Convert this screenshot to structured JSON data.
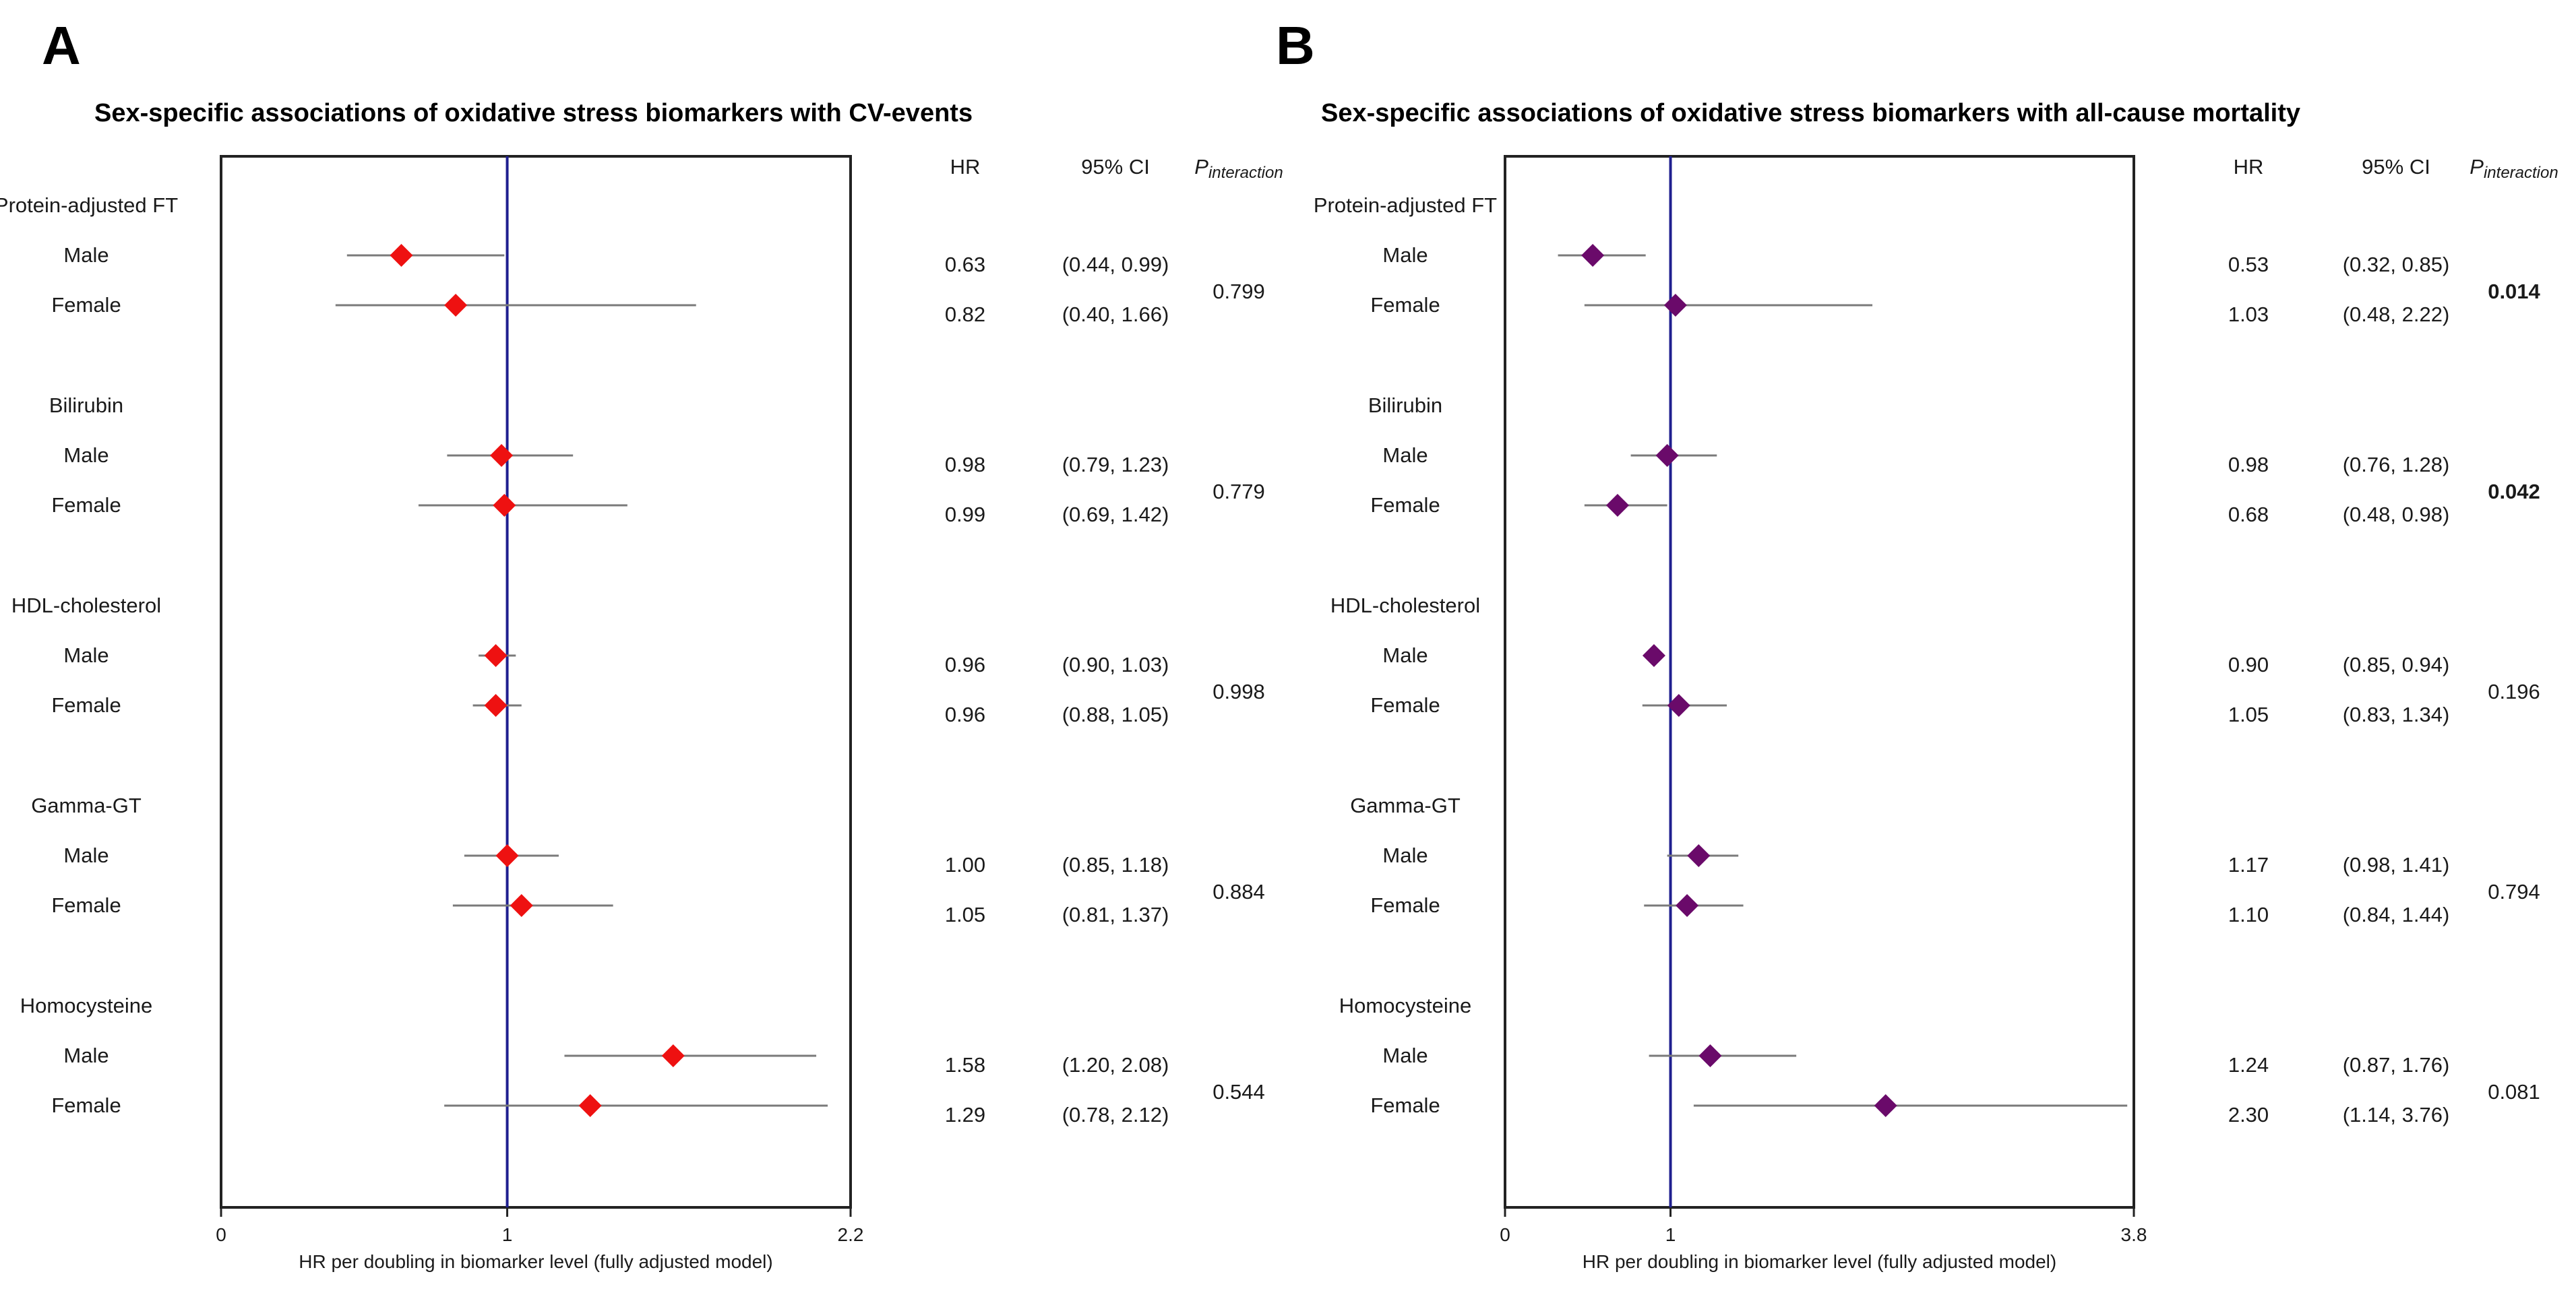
{
  "colors": {
    "ref_line": "#1f1f8f",
    "ci_line": "#7a7a7a",
    "frame": "#222222",
    "panel_a_marker": "#ee1111",
    "panel_b_marker": "#6a0a6a"
  },
  "table_headers": {
    "hr": "HR",
    "ci": "95% CI",
    "p_main": "P",
    "p_sub": "interaction"
  },
  "chart_data": [
    {
      "type": "forest",
      "panel": "A",
      "title": "Sex-specific associations of oxidative stress biomarkers with CV-events",
      "xlabel": "HR per doubling in biomarker level (fully adjusted model)",
      "xlim": [
        0,
        2.2
      ],
      "ticks": [
        "0",
        "1",
        "2.2"
      ],
      "tick_values": [
        0,
        1,
        2.2
      ],
      "reference": 1,
      "groups": [
        {
          "name": "Protein-adjusted FT",
          "p_interaction": "0.799",
          "p_bold": false,
          "rows": [
            {
              "label": "Male",
              "hr": 0.63,
              "lo": 0.44,
              "hi": 0.99,
              "hr_text": "0.63",
              "ci_text": "(0.44, 0.99)"
            },
            {
              "label": "Female",
              "hr": 0.82,
              "lo": 0.4,
              "hi": 1.66,
              "hr_text": "0.82",
              "ci_text": "(0.40, 1.66)"
            }
          ]
        },
        {
          "name": "Bilirubin",
          "p_interaction": "0.779",
          "p_bold": false,
          "rows": [
            {
              "label": "Male",
              "hr": 0.98,
              "lo": 0.79,
              "hi": 1.23,
              "hr_text": "0.98",
              "ci_text": "(0.79, 1.23)"
            },
            {
              "label": "Female",
              "hr": 0.99,
              "lo": 0.69,
              "hi": 1.42,
              "hr_text": "0.99",
              "ci_text": "(0.69, 1.42)"
            }
          ]
        },
        {
          "name": "HDL-cholesterol",
          "p_interaction": "0.998",
          "p_bold": false,
          "rows": [
            {
              "label": "Male",
              "hr": 0.96,
              "lo": 0.9,
              "hi": 1.03,
              "hr_text": "0.96",
              "ci_text": "(0.90, 1.03)"
            },
            {
              "label": "Female",
              "hr": 0.96,
              "lo": 0.88,
              "hi": 1.05,
              "hr_text": "0.96",
              "ci_text": "(0.88, 1.05)"
            }
          ]
        },
        {
          "name": "Gamma-GT",
          "p_interaction": "0.884",
          "p_bold": false,
          "rows": [
            {
              "label": "Male",
              "hr": 1.0,
              "lo": 0.85,
              "hi": 1.18,
              "hr_text": "1.00",
              "ci_text": "(0.85, 1.18)"
            },
            {
              "label": "Female",
              "hr": 1.05,
              "lo": 0.81,
              "hi": 1.37,
              "hr_text": "1.05",
              "ci_text": "(0.81, 1.37)"
            }
          ]
        },
        {
          "name": "Homocysteine",
          "p_interaction": "0.544",
          "p_bold": false,
          "rows": [
            {
              "label": "Male",
              "hr": 1.58,
              "lo": 1.2,
              "hi": 2.08,
              "hr_text": "1.58",
              "ci_text": "(1.20, 2.08)"
            },
            {
              "label": "Female",
              "hr": 1.29,
              "lo": 0.78,
              "hi": 2.12,
              "hr_text": "1.29",
              "ci_text": "(0.78, 2.12)"
            }
          ]
        }
      ]
    },
    {
      "type": "forest",
      "panel": "B",
      "title": "Sex-specific associations of oxidative stress biomarkers with all-cause mortality",
      "xlabel": "HR per doubling in biomarker level (fully adjusted model)",
      "xlim": [
        0,
        3.8
      ],
      "ticks": [
        "0",
        "1",
        "3.8"
      ],
      "tick_values": [
        0,
        1,
        3.8
      ],
      "reference": 1,
      "groups": [
        {
          "name": "Protein-adjusted FT",
          "p_interaction": "0.014",
          "p_bold": true,
          "rows": [
            {
              "label": "Male",
              "hr": 0.53,
              "lo": 0.32,
              "hi": 0.85,
              "hr_text": "0.53",
              "ci_text": "(0.32, 0.85)"
            },
            {
              "label": "Female",
              "hr": 1.03,
              "lo": 0.48,
              "hi": 2.22,
              "hr_text": "1.03",
              "ci_text": "(0.48, 2.22)"
            }
          ]
        },
        {
          "name": "Bilirubin",
          "p_interaction": "0.042",
          "p_bold": true,
          "rows": [
            {
              "label": "Male",
              "hr": 0.98,
              "lo": 0.76,
              "hi": 1.28,
              "hr_text": "0.98",
              "ci_text": "(0.76, 1.28)"
            },
            {
              "label": "Female",
              "hr": 0.68,
              "lo": 0.48,
              "hi": 0.98,
              "hr_text": "0.68",
              "ci_text": "(0.48, 0.98)"
            }
          ]
        },
        {
          "name": "HDL-cholesterol",
          "p_interaction": "0.196",
          "p_bold": false,
          "rows": [
            {
              "label": "Male",
              "hr": 0.9,
              "lo": 0.85,
              "hi": 0.94,
              "hr_text": "0.90",
              "ci_text": "(0.85, 0.94)"
            },
            {
              "label": "Female",
              "hr": 1.05,
              "lo": 0.83,
              "hi": 1.34,
              "hr_text": "1.05",
              "ci_text": "(0.83, 1.34)"
            }
          ]
        },
        {
          "name": "Gamma-GT",
          "p_interaction": "0.794",
          "p_bold": false,
          "rows": [
            {
              "label": "Male",
              "hr": 1.17,
              "lo": 0.98,
              "hi": 1.41,
              "hr_text": "1.17",
              "ci_text": "(0.98, 1.41)"
            },
            {
              "label": "Female",
              "hr": 1.1,
              "lo": 0.84,
              "hi": 1.44,
              "hr_text": "1.10",
              "ci_text": "(0.84, 1.44)"
            }
          ]
        },
        {
          "name": "Homocysteine",
          "p_interaction": "0.081",
          "p_bold": false,
          "rows": [
            {
              "label": "Male",
              "hr": 1.24,
              "lo": 0.87,
              "hi": 1.76,
              "hr_text": "1.24",
              "ci_text": "(0.87, 1.76)"
            },
            {
              "label": "Female",
              "hr": 2.3,
              "lo": 1.14,
              "hi": 3.76,
              "hr_text": "2.30",
              "ci_text": "(1.14, 3.76)"
            }
          ]
        }
      ]
    }
  ]
}
